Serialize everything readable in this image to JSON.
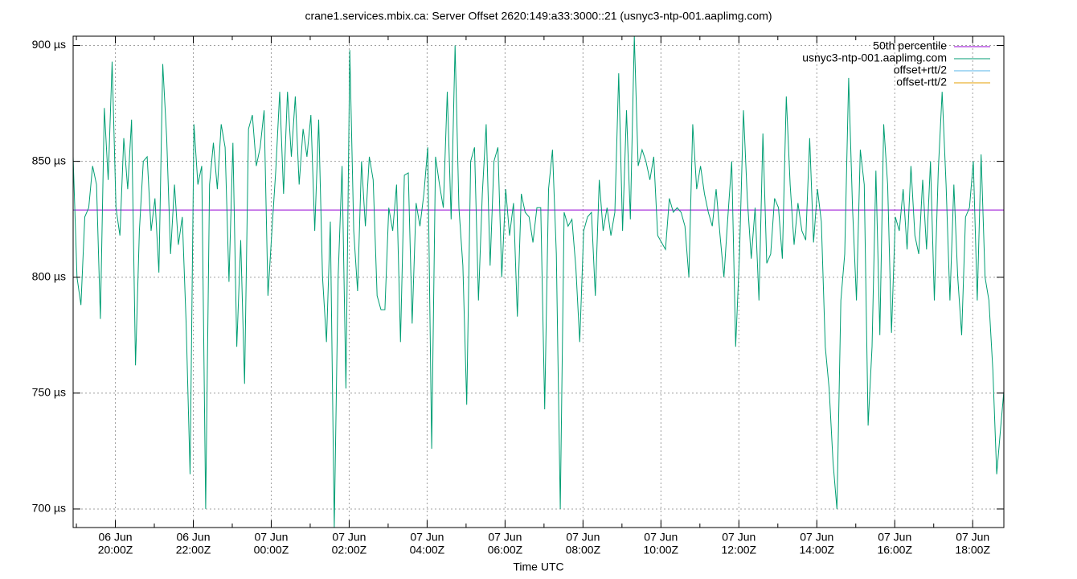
{
  "chart_data": {
    "type": "line",
    "title": "crane1.services.mbix.ca: Server Offset 2620:149:a33:3000::21 (usnyc3-ntp-001.aaplimg.com)",
    "xlabel": "Time UTC",
    "xlim": [
      "06 Jun 18:55",
      "07 Jun 18:48"
    ],
    "xticks": [
      {
        "value": "06 Jun 20:00",
        "label": [
          "06 Jun",
          "20:00Z"
        ]
      },
      {
        "value": "06 Jun 22:00",
        "label": [
          "06 Jun",
          "22:00Z"
        ]
      },
      {
        "value": "07 Jun 00:00",
        "label": [
          "07 Jun",
          "00:00Z"
        ]
      },
      {
        "value": "07 Jun 02:00",
        "label": [
          "07 Jun",
          "02:00Z"
        ]
      },
      {
        "value": "07 Jun 04:00",
        "label": [
          "07 Jun",
          "04:00Z"
        ]
      },
      {
        "value": "07 Jun 06:00",
        "label": [
          "07 Jun",
          "06:00Z"
        ]
      },
      {
        "value": "07 Jun 08:00",
        "label": [
          "07 Jun",
          "08:00Z"
        ]
      },
      {
        "value": "07 Jun 10:00",
        "label": [
          "07 Jun",
          "10:00Z"
        ]
      },
      {
        "value": "07 Jun 12:00",
        "label": [
          "07 Jun",
          "12:00Z"
        ]
      },
      {
        "value": "07 Jun 14:00",
        "label": [
          "07 Jun",
          "14:00Z"
        ]
      },
      {
        "value": "07 Jun 16:00",
        "label": [
          "07 Jun",
          "16:00Z"
        ]
      },
      {
        "value": "07 Jun 18:00",
        "label": [
          "07 Jun",
          "18:00Z"
        ]
      }
    ],
    "ylim": [
      692,
      904
    ],
    "yticks": [
      {
        "value": 700,
        "label": "700 µs"
      },
      {
        "value": 750,
        "label": "750 µs"
      },
      {
        "value": 800,
        "label": "800 µs"
      },
      {
        "value": 850,
        "label": "850 µs"
      },
      {
        "value": 900,
        "label": "900 µs"
      }
    ],
    "grid": true,
    "legend": "top-right",
    "series": [
      {
        "name": "50th percentile",
        "color": "#9400d3",
        "value": 829
      },
      {
        "name": "usnyc3-ntp-001.aaplimg.com",
        "color": "#009e73",
        "x": [
          "06 Jun 18:55",
          "06 Jun 19:01",
          "06 Jun 19:07",
          "06 Jun 19:13",
          "06 Jun 19:19",
          "06 Jun 19:25",
          "06 Jun 19:31",
          "06 Jun 19:37",
          "06 Jun 19:43",
          "06 Jun 19:49",
          "06 Jun 19:55",
          "06 Jun 20:01",
          "06 Jun 20:07",
          "06 Jun 20:13",
          "06 Jun 20:19",
          "06 Jun 20:25",
          "06 Jun 20:31",
          "06 Jun 20:37",
          "06 Jun 20:43",
          "06 Jun 20:49",
          "06 Jun 20:55",
          "06 Jun 21:01",
          "06 Jun 21:07",
          "06 Jun 21:13",
          "06 Jun 21:19",
          "06 Jun 21:25",
          "06 Jun 21:31",
          "06 Jun 21:37",
          "06 Jun 21:43",
          "06 Jun 21:49",
          "06 Jun 21:55",
          "06 Jun 22:01",
          "06 Jun 22:07",
          "06 Jun 22:13",
          "06 Jun 22:19",
          "06 Jun 22:25",
          "06 Jun 22:31",
          "06 Jun 22:37",
          "06 Jun 22:43",
          "06 Jun 22:49",
          "06 Jun 22:55",
          "06 Jun 23:01",
          "06 Jun 23:07",
          "06 Jun 23:13",
          "06 Jun 23:19",
          "06 Jun 23:25",
          "06 Jun 23:31",
          "06 Jun 23:37",
          "06 Jun 23:43",
          "06 Jun 23:49",
          "06 Jun 23:55",
          "07 Jun 00:01",
          "07 Jun 00:07",
          "07 Jun 00:13",
          "07 Jun 00:19",
          "07 Jun 00:25",
          "07 Jun 00:31",
          "07 Jun 00:37",
          "07 Jun 00:43",
          "07 Jun 00:49",
          "07 Jun 00:55",
          "07 Jun 01:01",
          "07 Jun 01:07",
          "07 Jun 01:13",
          "07 Jun 01:19",
          "07 Jun 01:25",
          "07 Jun 01:31",
          "07 Jun 01:37",
          "07 Jun 01:43",
          "07 Jun 01:49",
          "07 Jun 01:55",
          "07 Jun 02:01",
          "07 Jun 02:07",
          "07 Jun 02:13",
          "07 Jun 02:19",
          "07 Jun 02:25",
          "07 Jun 02:31",
          "07 Jun 02:37",
          "07 Jun 02:43",
          "07 Jun 02:49",
          "07 Jun 02:55",
          "07 Jun 03:01",
          "07 Jun 03:07",
          "07 Jun 03:13",
          "07 Jun 03:19",
          "07 Jun 03:25",
          "07 Jun 03:31",
          "07 Jun 03:37",
          "07 Jun 03:43",
          "07 Jun 03:49",
          "07 Jun 03:55",
          "07 Jun 04:01",
          "07 Jun 04:07",
          "07 Jun 04:13",
          "07 Jun 04:19",
          "07 Jun 04:25",
          "07 Jun 04:31",
          "07 Jun 04:37",
          "07 Jun 04:43",
          "07 Jun 04:49",
          "07 Jun 04:55",
          "07 Jun 05:01",
          "07 Jun 05:07",
          "07 Jun 05:13",
          "07 Jun 05:19",
          "07 Jun 05:25",
          "07 Jun 05:31",
          "07 Jun 05:37",
          "07 Jun 05:43",
          "07 Jun 05:49",
          "07 Jun 05:55",
          "07 Jun 06:01",
          "07 Jun 06:07",
          "07 Jun 06:13",
          "07 Jun 06:19",
          "07 Jun 06:25",
          "07 Jun 06:31",
          "07 Jun 06:37",
          "07 Jun 06:43",
          "07 Jun 06:49",
          "07 Jun 06:55",
          "07 Jun 07:01",
          "07 Jun 07:07",
          "07 Jun 07:13",
          "07 Jun 07:19",
          "07 Jun 07:25",
          "07 Jun 07:31",
          "07 Jun 07:37",
          "07 Jun 07:43",
          "07 Jun 07:49",
          "07 Jun 07:55",
          "07 Jun 08:01",
          "07 Jun 08:07",
          "07 Jun 08:13",
          "07 Jun 08:19",
          "07 Jun 08:25",
          "07 Jun 08:31",
          "07 Jun 08:37",
          "07 Jun 08:43",
          "07 Jun 08:49",
          "07 Jun 08:55",
          "07 Jun 09:01",
          "07 Jun 09:07",
          "07 Jun 09:13",
          "07 Jun 09:19",
          "07 Jun 09:25",
          "07 Jun 09:31",
          "07 Jun 09:37",
          "07 Jun 09:43",
          "07 Jun 09:49",
          "07 Jun 09:55",
          "07 Jun 10:01",
          "07 Jun 10:07",
          "07 Jun 10:13",
          "07 Jun 10:19",
          "07 Jun 10:25",
          "07 Jun 10:31",
          "07 Jun 10:37",
          "07 Jun 10:43",
          "07 Jun 10:49",
          "07 Jun 10:55",
          "07 Jun 11:01",
          "07 Jun 11:07",
          "07 Jun 11:13",
          "07 Jun 11:19",
          "07 Jun 11:25",
          "07 Jun 11:31",
          "07 Jun 11:37",
          "07 Jun 11:43",
          "07 Jun 11:49",
          "07 Jun 11:55",
          "07 Jun 12:01",
          "07 Jun 12:07",
          "07 Jun 12:13",
          "07 Jun 12:19",
          "07 Jun 12:25",
          "07 Jun 12:31",
          "07 Jun 12:37",
          "07 Jun 12:43",
          "07 Jun 12:49",
          "07 Jun 12:55",
          "07 Jun 13:01",
          "07 Jun 13:07",
          "07 Jun 13:13",
          "07 Jun 13:19",
          "07 Jun 13:25",
          "07 Jun 13:31",
          "07 Jun 13:37",
          "07 Jun 13:43",
          "07 Jun 13:49",
          "07 Jun 13:55",
          "07 Jun 14:01",
          "07 Jun 14:07",
          "07 Jun 14:13",
          "07 Jun 14:19",
          "07 Jun 14:25",
          "07 Jun 14:31",
          "07 Jun 14:37",
          "07 Jun 14:43",
          "07 Jun 14:49",
          "07 Jun 14:55",
          "07 Jun 15:01",
          "07 Jun 15:07",
          "07 Jun 15:13",
          "07 Jun 15:19",
          "07 Jun 15:25",
          "07 Jun 15:31",
          "07 Jun 15:37",
          "07 Jun 15:43",
          "07 Jun 15:49",
          "07 Jun 15:55",
          "07 Jun 16:01",
          "07 Jun 16:07",
          "07 Jun 16:13",
          "07 Jun 16:19",
          "07 Jun 16:25",
          "07 Jun 16:31",
          "07 Jun 16:37",
          "07 Jun 16:43",
          "07 Jun 16:49",
          "07 Jun 16:55",
          "07 Jun 17:01",
          "07 Jun 17:07",
          "07 Jun 17:13",
          "07 Jun 17:19",
          "07 Jun 17:25",
          "07 Jun 17:31",
          "07 Jun 17:37",
          "07 Jun 17:43",
          "07 Jun 17:49",
          "07 Jun 17:55",
          "07 Jun 18:01",
          "07 Jun 18:07",
          "07 Jun 18:13",
          "07 Jun 18:19",
          "07 Jun 18:25",
          "07 Jun 18:31",
          "07 Jun 18:37",
          "07 Jun 18:43",
          "07 Jun 18:49"
        ],
        "values": [
          852,
          800,
          788,
          826,
          830,
          848,
          840,
          782,
          873,
          842,
          893,
          830,
          818,
          860,
          838,
          868,
          762,
          820,
          850,
          852,
          820,
          834,
          802,
          892,
          860,
          810,
          840,
          814,
          826,
          780,
          715,
          866,
          840,
          848,
          700,
          840,
          858,
          838,
          866,
          856,
          798,
          858,
          770,
          816,
          754,
          864,
          870,
          848,
          856,
          872,
          792,
          820,
          846,
          880,
          836,
          880,
          852,
          878,
          840,
          864,
          852,
          870,
          820,
          868,
          800,
          772,
          824,
          692,
          800,
          848,
          752,
          898,
          820,
          794,
          850,
          822,
          852,
          842,
          792,
          786,
          786,
          830,
          820,
          840,
          772,
          844,
          845,
          780,
          832,
          822,
          836,
          856,
          726,
          852,
          840,
          830,
          880,
          825,
          900,
          830,
          805,
          745,
          850,
          856,
          790,
          836,
          866,
          805,
          850,
          856,
          800,
          838,
          818,
          832,
          783,
          836,
          828,
          826,
          815,
          830,
          830,
          743,
          838,
          855,
          810,
          700,
          828,
          822,
          825,
          804,
          772,
          820,
          826,
          828,
          792,
          842,
          820,
          830,
          818,
          828,
          888,
          820,
          872,
          825,
          904,
          848,
          855,
          850,
          842,
          852,
          818,
          815,
          812,
          834,
          828,
          830,
          828,
          822,
          800,
          866,
          838,
          848,
          836,
          828,
          822,
          838,
          818,
          800,
          826,
          850,
          770,
          810,
          872,
          834,
          808,
          830,
          790,
          862,
          806,
          810,
          834,
          830,
          808,
          878,
          840,
          814,
          832,
          820,
          816,
          860,
          815,
          838,
          824,
          770,
          752,
          720,
          700,
          790,
          810,
          886,
          830,
          790,
          855,
          840,
          736,
          770,
          846,
          775,
          866,
          840,
          776,
          826,
          820,
          838,
          812,
          848,
          818,
          810,
          842,
          812,
          850,
          790,
          846,
          880,
          840,
          790,
          840,
          800,
          775,
          826,
          830,
          850,
          790,
          853,
          800,
          790,
          760,
          715,
          735,
          754
        ]
      },
      {
        "name": "offset+rtt/2",
        "color": "#56b4e9"
      },
      {
        "name": "offset-rtt/2",
        "color": "#e69f00"
      }
    ]
  }
}
